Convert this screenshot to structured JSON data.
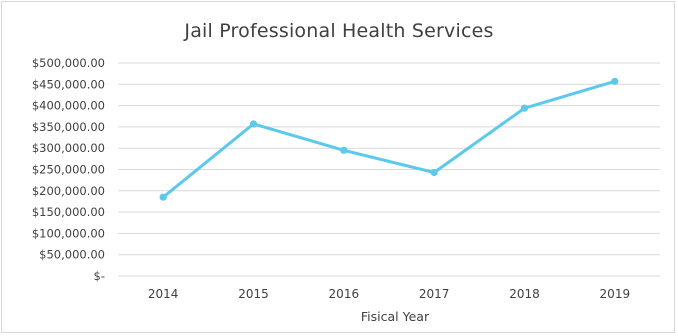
{
  "chart_data": {
    "type": "line",
    "title": "Jail Professional Health Services",
    "xlabel": "Fisical Year",
    "ylabel": "",
    "categories": [
      "2014",
      "2015",
      "2016",
      "2017",
      "2018",
      "2019"
    ],
    "series": [
      {
        "values": [
          185000,
          357000,
          295000,
          243000,
          394000,
          457000
        ]
      }
    ],
    "ylim": [
      0,
      500000
    ],
    "yticks": [
      0,
      50000,
      100000,
      150000,
      200000,
      250000,
      300000,
      350000,
      400000,
      450000,
      500000
    ],
    "ytick_labels": [
      "$-",
      "$50,000.00",
      "$100,000.00",
      "$150,000.00",
      "$200,000.00",
      "$250,000.00",
      "$300,000.00",
      "$350,000.00",
      "$400,000.00",
      "$450,000.00",
      "$500,000.00"
    ],
    "grid": true,
    "legend": "none",
    "line_color": "#5bc8ec",
    "grid_color": "#d9d9d9"
  }
}
